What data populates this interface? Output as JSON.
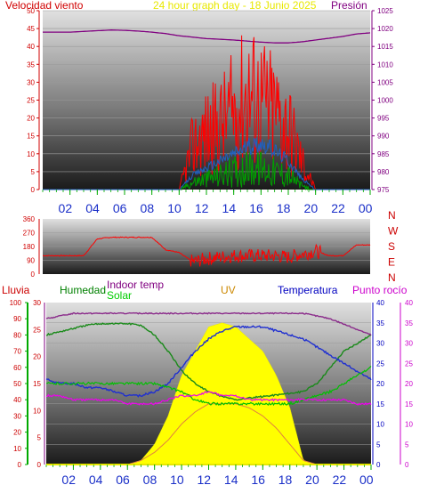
{
  "header": {
    "wind_label": "Velocidad viento",
    "title": "24 hour graph day - 18 Junio 2025",
    "pressure_label": "Presión"
  },
  "labels": {
    "rain": "Lluvia",
    "humidity": "Humedad",
    "indoor": "Indoor temp",
    "solar": "Solar",
    "uv": "UV",
    "temperature": "Temperatura",
    "dewpoint": "Punto rocío"
  },
  "compass": [
    "N",
    "W",
    "S",
    "E",
    "N"
  ],
  "colors": {
    "wind_label": "#d00000",
    "title": "#e8e800",
    "pressure": "#800080",
    "rain": "#cc0000",
    "humidity": "#008000",
    "indoor": "#800080",
    "solar": "#00cc00",
    "uv": "#cc8800",
    "temperature": "#0000c0",
    "dewpoint": "#cc00cc",
    "hours": "#1a2fc8"
  },
  "chart_data": [
    {
      "type": "line",
      "name": "wind",
      "x_ticks": [
        "02",
        "04",
        "06",
        "08",
        "10",
        "12",
        "14",
        "16",
        "18",
        "20",
        "22",
        "00"
      ],
      "y_left_ticks": [
        "0",
        "5",
        "10",
        "15",
        "20",
        "25",
        "30",
        "35",
        "40",
        "45",
        "50"
      ],
      "y_right_ticks": [
        "975",
        "980",
        "985",
        "990",
        "995",
        "1000",
        "1005",
        "1010",
        "1015",
        "1020",
        "1025"
      ],
      "ylim_left": [
        0,
        50
      ],
      "ylim_right": [
        975,
        1025
      ],
      "pressure_hourly": [
        1019,
        1019,
        1019,
        1019.2,
        1019.4,
        1019.6,
        1019.5,
        1019.3,
        1019,
        1018.6,
        1018,
        1017.6,
        1017.2,
        1017,
        1016.8,
        1016.5,
        1016.2,
        1016,
        1016,
        1016.3,
        1016.8,
        1017.3,
        1017.8,
        1018.5,
        1018.8
      ],
      "gust_hourly": [
        0,
        0,
        0,
        0,
        0,
        0,
        0,
        0,
        0,
        0,
        0,
        12,
        16,
        18,
        22,
        27,
        25,
        22,
        18,
        8,
        0,
        0,
        0,
        0,
        0
      ],
      "avg_hourly": [
        0,
        0,
        0,
        0,
        0,
        0,
        0,
        0,
        0,
        0,
        0,
        4,
        6,
        8,
        10,
        12,
        13,
        11,
        8,
        3,
        0,
        0,
        0,
        0,
        0
      ],
      "speed_hourly": [
        0,
        0,
        0,
        0,
        0,
        0,
        0,
        0,
        0,
        0,
        0,
        2,
        3,
        4,
        5,
        6,
        6,
        5,
        4,
        1,
        0,
        0,
        0,
        0,
        0
      ]
    },
    {
      "type": "line",
      "name": "direction",
      "y_left_ticks": [
        "0",
        "90",
        "180",
        "270",
        "360"
      ],
      "ylim": [
        0,
        360
      ],
      "direction_hourly": [
        120,
        120,
        120,
        120,
        230,
        240,
        240,
        240,
        240,
        160,
        140,
        80,
        100,
        110,
        120,
        120,
        120,
        120,
        110,
        130,
        150,
        120,
        120,
        190,
        190
      ]
    },
    {
      "type": "line",
      "name": "temperature",
      "x_ticks": [
        "02",
        "04",
        "06",
        "08",
        "10",
        "12",
        "14",
        "16",
        "18",
        "20",
        "22",
        "00"
      ],
      "y_rain_ticks": [
        "0",
        "10",
        "20",
        "30",
        "40",
        "50",
        "60",
        "70",
        "80",
        "90",
        "100"
      ],
      "y_mid_ticks": [
        "0",
        "5",
        "10",
        "15",
        "20",
        "25",
        "30"
      ],
      "y_right_ticks": [
        "0",
        "5",
        "10",
        "15",
        "20",
        "25",
        "30",
        "35",
        "40"
      ],
      "humidity_hourly": [
        80,
        82,
        84,
        86,
        87,
        87,
        87,
        86,
        80,
        70,
        58,
        50,
        45,
        42,
        40,
        41,
        42,
        43,
        44,
        45,
        50,
        60,
        70,
        75,
        80
      ],
      "indoor_hourly": [
        27,
        27.5,
        28,
        28,
        28,
        28,
        28,
        28,
        28,
        28,
        28,
        28,
        28,
        28,
        28,
        28,
        28,
        28,
        28,
        28,
        27.5,
        27,
        26,
        25,
        24
      ],
      "temperature_hourly": [
        21,
        20,
        20,
        19,
        19,
        18,
        17,
        17,
        18,
        20,
        24,
        28,
        31,
        33,
        34,
        34,
        34,
        33,
        32,
        31,
        29,
        27,
        25,
        23,
        21
      ],
      "solar_hourly": [
        20,
        20,
        20,
        20,
        20,
        20,
        20,
        20,
        20,
        19,
        18,
        16,
        15,
        15,
        15,
        15,
        15,
        15,
        15,
        16,
        17,
        18,
        20,
        22,
        24
      ],
      "dewpoint_hourly": [
        17,
        17,
        16,
        16,
        16,
        16,
        15,
        15,
        15,
        16,
        17,
        17,
        18,
        17,
        17,
        16,
        16,
        16,
        16,
        16,
        16,
        16,
        16,
        15,
        15
      ],
      "uv_hourly": [
        0,
        0,
        0,
        0,
        0,
        0,
        0,
        1,
        3,
        6,
        10,
        13,
        15,
        15,
        15,
        14,
        12,
        9,
        5,
        1,
        0,
        0,
        0,
        0,
        0
      ],
      "uv_filled_hourly": [
        0,
        0,
        0,
        0,
        0,
        0,
        0,
        1,
        5,
        12,
        22,
        28,
        34,
        35,
        34,
        31,
        28,
        22,
        14,
        1,
        0,
        0,
        0,
        0,
        0
      ]
    }
  ]
}
